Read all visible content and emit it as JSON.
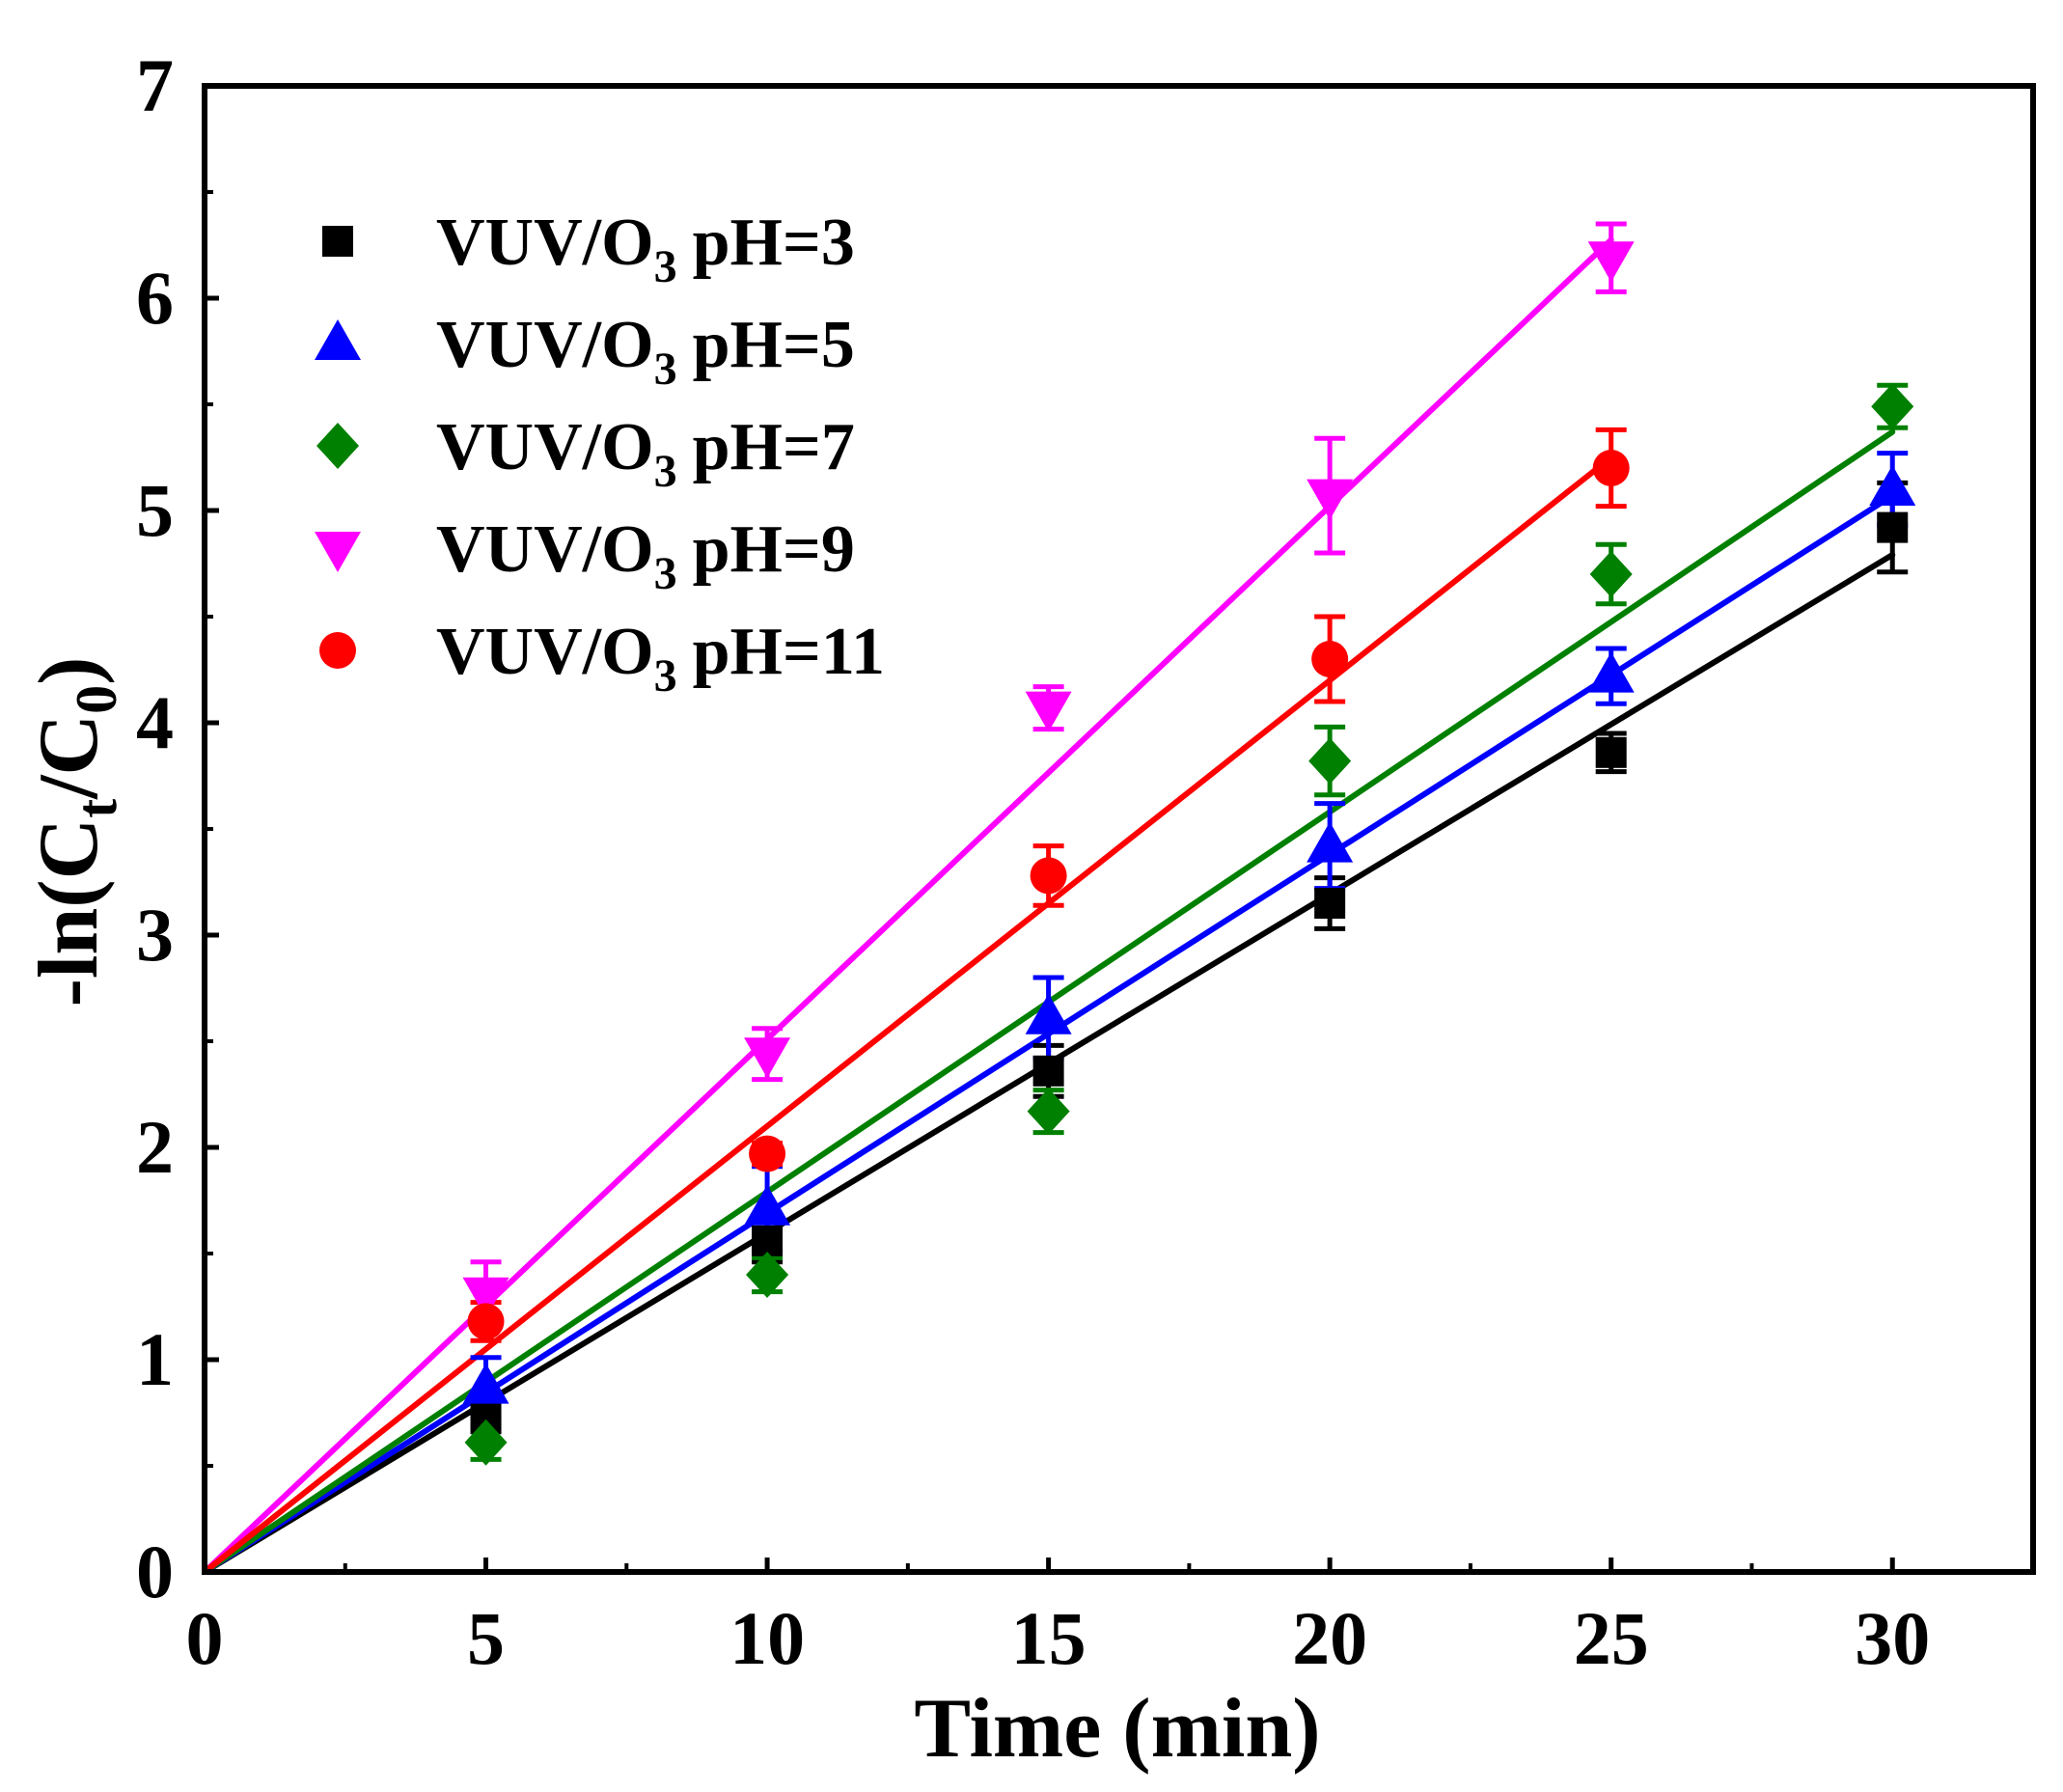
{
  "chart_data": {
    "type": "scatter",
    "title": "",
    "xlabel": "Time (min)",
    "ylabel": {
      "pre": "-ln(C",
      "sub1": "t",
      "mid": "/C",
      "sub2": "0",
      "post": ")"
    },
    "xlim": [
      0,
      32.5
    ],
    "ylim": [
      0,
      7
    ],
    "xticks": [
      0,
      5,
      10,
      15,
      20,
      25,
      30
    ],
    "yticks": [
      0,
      1,
      2,
      3,
      4,
      5,
      6,
      7
    ],
    "x_minor_step": 2.5,
    "y_minor_step": 0.5,
    "legend_position": "top-left",
    "series": [
      {
        "label": "VUV/O",
        "label_sub": "3",
        "label_tail": "pH=3",
        "color": "#000000",
        "marker": "square",
        "x": [
          5,
          10,
          15,
          20,
          25,
          30
        ],
        "y": [
          0.74,
          1.56,
          2.36,
          3.15,
          3.86,
          4.92
        ],
        "err": [
          0.08,
          0.1,
          0.12,
          0.12,
          0.09,
          0.21
        ],
        "fit_slope": 0.1597
      },
      {
        "label": "VUV/O",
        "label_sub": "3",
        "label_tail": "pH=5",
        "color": "#0000FF",
        "marker": "triangle-up",
        "x": [
          5,
          10,
          15,
          20,
          25,
          30
        ],
        "y": [
          0.87,
          1.71,
          2.61,
          3.42,
          4.22,
          5.1
        ],
        "err": [
          0.14,
          0.2,
          0.19,
          0.2,
          0.13,
          0.17
        ],
        "fit_slope": 0.169
      },
      {
        "label": "VUV/O",
        "label_sub": "3",
        "label_tail": "pH=7",
        "color": "#008000",
        "marker": "diamond",
        "x": [
          5,
          10,
          15,
          20,
          25,
          30
        ],
        "y": [
          0.61,
          1.4,
          2.17,
          3.82,
          4.7,
          5.49
        ],
        "err": [
          0.08,
          0.08,
          0.1,
          0.16,
          0.14,
          0.1
        ],
        "fit_slope": 0.179
      },
      {
        "label": "VUV/O",
        "label_sub": "3",
        "label_tail": "pH=9",
        "color": "#FF00FF",
        "marker": "triangle-down",
        "x": [
          5,
          10,
          15,
          20,
          25
        ],
        "y": [
          1.31,
          2.44,
          4.07,
          5.07,
          6.19
        ],
        "err": [
          0.15,
          0.12,
          0.1,
          0.27,
          0.16
        ],
        "fit_slope": 0.251
      },
      {
        "label": "VUV/O",
        "label_sub": "3",
        "label_tail": "pH=11",
        "color": "#FF0000",
        "marker": "circle",
        "x": [
          5,
          10,
          15,
          20,
          25
        ],
        "y": [
          1.18,
          1.97,
          3.28,
          4.3,
          5.2
        ],
        "err": [
          0.09,
          0.05,
          0.14,
          0.2,
          0.18
        ],
        "fit_slope": 0.21
      }
    ]
  }
}
